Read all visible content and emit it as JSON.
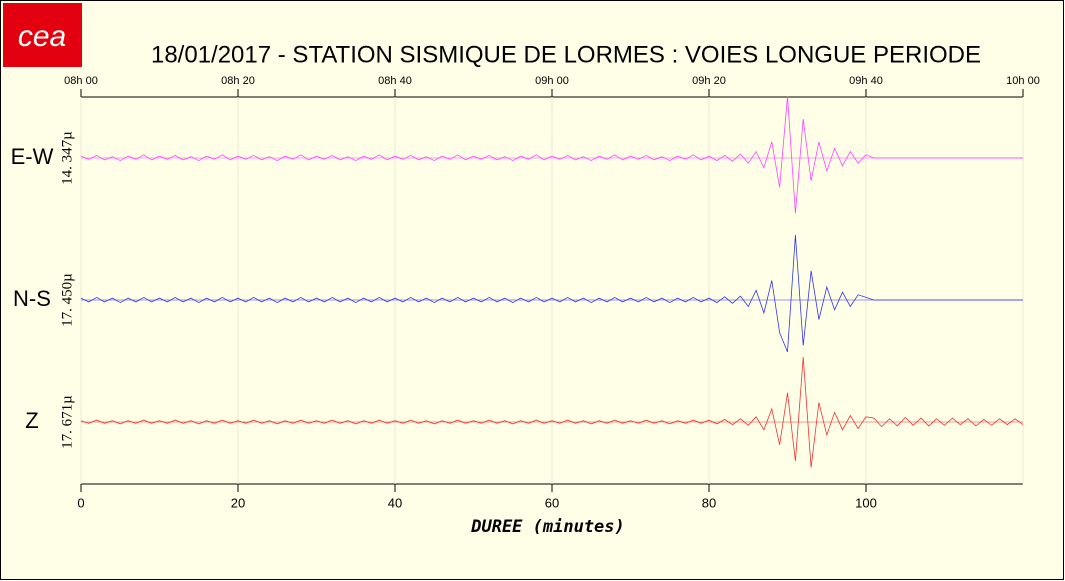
{
  "chart_data": {
    "type": "seismogram",
    "logo": "cea",
    "title": "18/01/2017  -  STATION SISMIQUE DE LORMES : VOIES LONGUE PERIODE",
    "x_label": "DUREE (minutes)",
    "xlim": [
      0,
      120
    ],
    "xticks": [
      0,
      20,
      40,
      60,
      80,
      100
    ],
    "x2ticks": [
      {
        "value": 0,
        "label": "08h 00"
      },
      {
        "value": 20,
        "label": "08h 20"
      },
      {
        "value": 40,
        "label": "08h 40"
      },
      {
        "value": 60,
        "label": "09h 00"
      },
      {
        "value": 80,
        "label": "09h 20"
      },
      {
        "value": 100,
        "label": "09h 40"
      },
      {
        "value": 120,
        "label": "10h 00"
      }
    ],
    "ylim": [
      -1,
      1
    ],
    "grid": true,
    "x": [
      0,
      1,
      2,
      3,
      4,
      5,
      6,
      7,
      8,
      9,
      10,
      11,
      12,
      13,
      14,
      15,
      16,
      17,
      18,
      19,
      20,
      21,
      22,
      23,
      24,
      25,
      26,
      27,
      28,
      29,
      30,
      31,
      32,
      33,
      34,
      35,
      36,
      37,
      38,
      39,
      40,
      41,
      42,
      43,
      44,
      45,
      46,
      47,
      48,
      49,
      50,
      51,
      52,
      53,
      54,
      55,
      56,
      57,
      58,
      59,
      60,
      61,
      62,
      63,
      64,
      65,
      66,
      67,
      68,
      69,
      70,
      71,
      72,
      73,
      74,
      75,
      76,
      77,
      78,
      79,
      80,
      81,
      82,
      83,
      84,
      85,
      86,
      87,
      88,
      89,
      90,
      91,
      92,
      93,
      94,
      95,
      96,
      97,
      98,
      99,
      100,
      101,
      102,
      103,
      104,
      105,
      106,
      107,
      108,
      109,
      110,
      111,
      112,
      113,
      114,
      115,
      116,
      117,
      118,
      119,
      120
    ],
    "series": [
      {
        "name": "E-W",
        "scale_label": "14. 347µ",
        "color": "#ff44ff",
        "values": [
          0.03,
          -0.02,
          0.04,
          -0.03,
          0.02,
          -0.04,
          0.03,
          -0.02,
          0.05,
          -0.03,
          0.03,
          -0.02,
          0.04,
          -0.03,
          0.02,
          -0.04,
          0.03,
          -0.02,
          0.05,
          -0.03,
          0.03,
          -0.02,
          0.04,
          -0.03,
          0.02,
          -0.04,
          0.03,
          -0.02,
          0.05,
          -0.03,
          0.03,
          -0.02,
          0.04,
          -0.03,
          0.02,
          -0.04,
          0.03,
          -0.02,
          0.05,
          -0.03,
          0.03,
          -0.02,
          0.04,
          -0.03,
          0.02,
          -0.04,
          0.03,
          -0.02,
          0.05,
          -0.03,
          0.03,
          -0.02,
          0.04,
          -0.03,
          0.02,
          -0.04,
          0.03,
          -0.02,
          0.05,
          -0.03,
          0.03,
          -0.02,
          0.04,
          -0.03,
          0.02,
          -0.04,
          0.03,
          -0.02,
          0.05,
          -0.03,
          0.03,
          -0.02,
          0.04,
          -0.03,
          0.02,
          -0.04,
          0.03,
          -0.02,
          0.05,
          -0.03,
          0.03,
          -0.04,
          0.04,
          -0.05,
          0.06,
          -0.08,
          0.1,
          -0.15,
          0.25,
          -0.45,
          0.95,
          -0.85,
          0.6,
          -0.35,
          0.25,
          -0.2,
          0.15,
          -0.12,
          0.1,
          -0.08,
          0.05,
          0,
          0,
          0,
          0,
          0,
          0,
          0,
          0,
          0,
          0,
          0,
          0,
          0,
          0,
          0,
          0,
          0,
          0,
          0,
          0
        ]
      },
      {
        "name": "N-S",
        "scale_label": "17. 450µ",
        "color": "#3333ee",
        "values": [
          0.03,
          -0.03,
          0.04,
          -0.03,
          0.03,
          -0.04,
          0.03,
          -0.03,
          0.04,
          -0.03,
          0.03,
          -0.03,
          0.04,
          -0.03,
          0.03,
          -0.04,
          0.03,
          -0.03,
          0.04,
          -0.03,
          0.03,
          -0.03,
          0.04,
          -0.03,
          0.03,
          -0.04,
          0.03,
          -0.03,
          0.04,
          -0.03,
          0.03,
          -0.03,
          0.04,
          -0.03,
          0.03,
          -0.04,
          0.03,
          -0.03,
          0.04,
          -0.03,
          0.03,
          -0.03,
          0.04,
          -0.03,
          0.03,
          -0.04,
          0.03,
          -0.03,
          0.04,
          -0.03,
          0.03,
          -0.03,
          0.04,
          -0.03,
          0.03,
          -0.04,
          0.03,
          -0.03,
          0.04,
          -0.03,
          0.03,
          -0.03,
          0.04,
          -0.03,
          0.03,
          -0.04,
          0.03,
          -0.03,
          0.04,
          -0.03,
          0.03,
          -0.03,
          0.04,
          -0.03,
          0.03,
          -0.04,
          0.03,
          -0.03,
          0.04,
          -0.03,
          0.03,
          -0.04,
          0.05,
          -0.05,
          0.06,
          -0.1,
          0.15,
          -0.2,
          0.3,
          -0.5,
          -0.8,
          1.0,
          -0.7,
          0.45,
          -0.3,
          0.2,
          -0.15,
          0.12,
          -0.1,
          0.08,
          0.04,
          0,
          0,
          0,
          0,
          0,
          0,
          0,
          0,
          0,
          0,
          0,
          0,
          0,
          0,
          0,
          0,
          0,
          0,
          0,
          0
        ]
      },
      {
        "name": "Z",
        "scale_label": "17. 671µ",
        "color": "#ee3333",
        "values": [
          0.02,
          -0.02,
          0.03,
          -0.02,
          0.02,
          -0.03,
          0.02,
          -0.02,
          0.03,
          -0.02,
          0.02,
          -0.02,
          0.03,
          -0.02,
          0.02,
          -0.03,
          0.02,
          -0.02,
          0.03,
          -0.02,
          0.02,
          -0.02,
          0.03,
          -0.02,
          0.02,
          -0.03,
          0.02,
          -0.02,
          0.03,
          -0.02,
          0.02,
          -0.02,
          0.03,
          -0.02,
          0.02,
          -0.03,
          0.02,
          -0.02,
          0.03,
          -0.02,
          0.02,
          -0.02,
          0.03,
          -0.02,
          0.02,
          -0.03,
          0.02,
          -0.02,
          0.03,
          -0.02,
          0.02,
          -0.02,
          0.03,
          -0.02,
          0.02,
          -0.03,
          0.02,
          -0.02,
          0.03,
          -0.02,
          0.02,
          -0.02,
          0.03,
          -0.02,
          0.02,
          -0.03,
          0.02,
          -0.02,
          0.03,
          -0.02,
          0.02,
          -0.02,
          0.03,
          -0.02,
          0.02,
          -0.03,
          0.02,
          -0.02,
          0.03,
          -0.02,
          0.03,
          -0.03,
          0.04,
          -0.04,
          0.05,
          -0.05,
          0.08,
          -0.12,
          0.2,
          -0.35,
          0.45,
          -0.6,
          1.0,
          -0.7,
          0.3,
          -0.2,
          0.15,
          -0.12,
          0.1,
          -0.1,
          0.08,
          0.06,
          -0.07,
          0.05,
          -0.06,
          0.07,
          -0.05,
          0.06,
          -0.06,
          0.05,
          -0.05,
          0.06,
          -0.04,
          0.05,
          -0.06,
          0.04,
          -0.05,
          0.05,
          -0.04,
          0.05,
          -0.04
        ]
      }
    ]
  }
}
